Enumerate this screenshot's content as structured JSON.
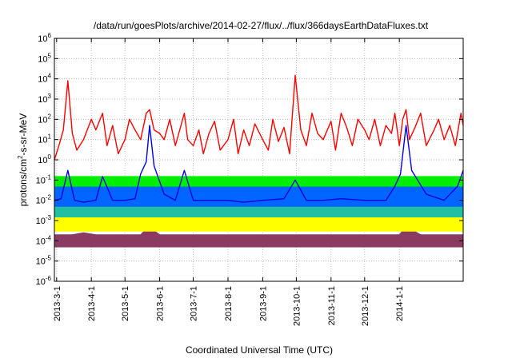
{
  "chart_data": {
    "type": "line",
    "title": "/data/run/goesPlots/archive/2014-02-27/flux/../flux/366daysEarthDataFluxes.txt",
    "xlabel": "Coordinated Universal Time (UTC)",
    "ylabel": {
      "prefix": "protons/cm",
      "sup": "2",
      "suffix": "-s-sr-MeV"
    },
    "yscale": "log",
    "ylim": [
      1e-06,
      1000000.0
    ],
    "xlim": [
      "2013-02-27",
      "2014-02-27"
    ],
    "grid": true,
    "x_tick_labels": [
      "2013-3-1",
      "2013-4-1",
      "2013-5-1",
      "2013-6-1",
      "2013-7-1",
      "2013-8-1",
      "2013-9-1",
      "2013-10-1",
      "2013-11-1",
      "2013-12-1",
      "2014-1-1"
    ],
    "x_tick_dates": [
      "2013-03-01",
      "2013-04-01",
      "2013-05-01",
      "2013-06-01",
      "2013-07-01",
      "2013-08-01",
      "2013-09-01",
      "2013-10-01",
      "2013-11-01",
      "2013-12-01",
      "2014-01-01"
    ],
    "y_ticks": [
      {
        "mant": "10",
        "exp": "-6",
        "value": 1e-06
      },
      {
        "mant": "10",
        "exp": "-5",
        "value": 1e-05
      },
      {
        "mant": "10",
        "exp": "-4",
        "value": 0.0001
      },
      {
        "mant": "10",
        "exp": "-3",
        "value": 0.001
      },
      {
        "mant": "10",
        "exp": "-2",
        "value": 0.01
      },
      {
        "mant": "10",
        "exp": "-1",
        "value": 0.1
      },
      {
        "mant": "10",
        "exp": "0",
        "value": 1
      },
      {
        "mant": "10",
        "exp": "1",
        "value": 10
      },
      {
        "mant": "10",
        "exp": "2",
        "value": 100
      },
      {
        "mant": "10",
        "exp": "3",
        "value": 1000.0
      },
      {
        "mant": "10",
        "exp": "4",
        "value": 10000.0
      },
      {
        "mant": "10",
        "exp": "5",
        "value": 100000.0
      },
      {
        "mant": "10",
        "exp": "6",
        "value": 1000000.0
      }
    ],
    "series": [
      {
        "color": "#8b3a62",
        "dates": [
          "2013-02-27",
          "2013-03-05",
          "2013-03-15",
          "2013-03-25",
          "2013-04-05",
          "2013-04-15",
          "2013-04-25",
          "2013-05-05",
          "2013-05-15",
          "2013-05-22",
          "2013-06-01",
          "2013-06-15",
          "2013-07-01",
          "2013-07-15",
          "2013-08-01",
          "2013-08-15",
          "2013-09-01",
          "2013-09-15",
          "2013-10-01",
          "2013-10-15",
          "2013-11-01",
          "2013-11-15",
          "2013-12-01",
          "2013-12-15",
          "2014-01-01",
          "2014-01-07",
          "2014-01-20",
          "2014-02-05",
          "2014-02-20",
          "2014-02-27"
        ],
        "lower": [
          5e-05,
          5e-05,
          5e-05,
          5e-05,
          5e-05,
          5e-05,
          5e-05,
          5e-05,
          5e-05,
          5e-05,
          5e-05,
          5e-05,
          5e-05,
          5e-05,
          5e-05,
          5e-05,
          5e-05,
          5e-05,
          5e-05,
          5e-05,
          5e-05,
          5e-05,
          5e-05,
          5e-05,
          5e-05,
          5e-05,
          5e-05,
          5e-05,
          5e-05,
          5e-05
        ],
        "upper": [
          0.0002,
          0.0002,
          0.0002,
          0.00025,
          0.0002,
          0.0002,
          0.0002,
          0.0002,
          0.0002,
          0.0005,
          0.0002,
          0.0002,
          0.0002,
          0.0002,
          0.0002,
          0.0002,
          0.0002,
          0.0002,
          0.0002,
          0.0002,
          0.0002,
          0.0002,
          0.0002,
          0.0002,
          0.0002,
          0.0005,
          0.0002,
          0.0002,
          0.0002,
          0.0002
        ]
      },
      {
        "color": "#ffff00",
        "dates": [
          "2013-02-27",
          "2013-03-05",
          "2013-03-15",
          "2013-03-25",
          "2013-04-05",
          "2013-04-15",
          "2013-04-25",
          "2013-05-05",
          "2013-05-15",
          "2013-05-22",
          "2013-06-01",
          "2013-06-15",
          "2013-07-01",
          "2013-07-15",
          "2013-08-01",
          "2013-08-15",
          "2013-09-01",
          "2013-09-15",
          "2013-10-01",
          "2013-10-15",
          "2013-11-01",
          "2013-11-15",
          "2013-12-01",
          "2013-12-15",
          "2014-01-01",
          "2014-01-07",
          "2014-01-20",
          "2014-02-05",
          "2014-02-20",
          "2014-02-27"
        ],
        "lower": [
          0.0003,
          0.0003,
          0.0003,
          0.0003,
          0.0003,
          0.0003,
          0.0003,
          0.0003,
          0.0003,
          0.0003,
          0.0003,
          0.0003,
          0.0003,
          0.0003,
          0.0003,
          0.0003,
          0.0003,
          0.0003,
          0.0003,
          0.0003,
          0.0003,
          0.0003,
          0.0003,
          0.0003,
          0.0003,
          0.0003,
          0.0003,
          0.0003,
          0.0003,
          0.0003
        ],
        "upper": [
          0.0015,
          0.0015,
          0.0015,
          0.0015,
          0.0015,
          0.0015,
          0.0015,
          0.0015,
          0.0015,
          0.004,
          0.0015,
          0.0015,
          0.0015,
          0.0015,
          0.0015,
          0.0015,
          0.0015,
          0.0015,
          0.0015,
          0.0015,
          0.0015,
          0.0015,
          0.0015,
          0.0015,
          0.0015,
          0.003,
          0.0015,
          0.0015,
          0.0015,
          0.0015
        ]
      },
      {
        "color": "#20c0a0",
        "dates": [
          "2013-02-27",
          "2013-03-05",
          "2013-03-15",
          "2013-03-25",
          "2013-04-05",
          "2013-04-15",
          "2013-04-25",
          "2013-05-05",
          "2013-05-15",
          "2013-05-22",
          "2013-06-01",
          "2013-06-15",
          "2013-07-01",
          "2013-07-15",
          "2013-08-01",
          "2013-08-15",
          "2013-09-01",
          "2013-09-15",
          "2013-10-01",
          "2013-10-15",
          "2013-11-01",
          "2013-11-15",
          "2013-12-01",
          "2013-12-15",
          "2014-01-01",
          "2014-01-07",
          "2014-01-20",
          "2014-02-05",
          "2014-02-20",
          "2014-02-27"
        ],
        "lower": [
          0.0015,
          0.0015,
          0.0015,
          0.0015,
          0.0015,
          0.0015,
          0.0015,
          0.0015,
          0.0015,
          0.0015,
          0.0015,
          0.0015,
          0.0015,
          0.0015,
          0.0015,
          0.0015,
          0.0015,
          0.0015,
          0.0015,
          0.0015,
          0.0015,
          0.0015,
          0.0015,
          0.0015,
          0.0015,
          0.0015,
          0.0015,
          0.0015,
          0.0015,
          0.0015
        ],
        "upper": [
          0.005,
          0.005,
          0.005,
          0.005,
          0.005,
          0.005,
          0.005,
          0.005,
          0.005,
          0.01,
          0.005,
          0.005,
          0.005,
          0.005,
          0.005,
          0.005,
          0.005,
          0.005,
          0.005,
          0.005,
          0.005,
          0.005,
          0.005,
          0.005,
          0.005,
          0.008,
          0.005,
          0.005,
          0.005,
          0.005
        ]
      },
      {
        "color": "#0066ff",
        "dates": [
          "2013-02-27",
          "2013-03-05",
          "2013-03-15",
          "2013-03-25",
          "2013-04-05",
          "2013-04-15",
          "2013-04-25",
          "2013-05-05",
          "2013-05-15",
          "2013-05-22",
          "2013-06-01",
          "2013-06-15",
          "2013-07-01",
          "2013-07-15",
          "2013-08-01",
          "2013-08-15",
          "2013-09-01",
          "2013-09-15",
          "2013-10-01",
          "2013-10-15",
          "2013-11-01",
          "2013-11-15",
          "2013-12-01",
          "2013-12-15",
          "2014-01-01",
          "2014-01-07",
          "2014-01-20",
          "2014-02-05",
          "2014-02-20",
          "2014-02-27"
        ],
        "lower": [
          0.005,
          0.005,
          0.005,
          0.005,
          0.005,
          0.005,
          0.005,
          0.005,
          0.005,
          0.005,
          0.005,
          0.005,
          0.005,
          0.005,
          0.005,
          0.005,
          0.005,
          0.005,
          0.005,
          0.005,
          0.005,
          0.005,
          0.005,
          0.005,
          0.005,
          0.005,
          0.005,
          0.005,
          0.005,
          0.005
        ],
        "upper": [
          0.05,
          0.05,
          0.05,
          0.05,
          0.05,
          0.05,
          0.05,
          0.05,
          0.05,
          0.05,
          0.05,
          0.05,
          0.05,
          0.05,
          0.05,
          0.05,
          0.05,
          0.05,
          0.05,
          0.05,
          0.05,
          0.05,
          0.05,
          0.05,
          0.05,
          0.05,
          0.05,
          0.05,
          0.05,
          0.05
        ]
      },
      {
        "color": "#00ee00",
        "dates": [
          "2013-02-27",
          "2013-03-05",
          "2013-03-15",
          "2013-03-25",
          "2013-04-05",
          "2013-04-15",
          "2013-04-25",
          "2013-05-05",
          "2013-05-15",
          "2013-05-22",
          "2013-06-01",
          "2013-06-15",
          "2013-07-01",
          "2013-07-15",
          "2013-08-01",
          "2013-08-15",
          "2013-09-01",
          "2013-09-15",
          "2013-10-01",
          "2013-10-15",
          "2013-11-01",
          "2013-11-15",
          "2013-12-01",
          "2013-12-15",
          "2014-01-01",
          "2014-01-07",
          "2014-01-20",
          "2014-02-05",
          "2014-02-20",
          "2014-02-27"
        ],
        "lower": [
          0.05,
          0.05,
          0.05,
          0.05,
          0.05,
          0.05,
          0.05,
          0.05,
          0.05,
          0.05,
          0.05,
          0.05,
          0.05,
          0.05,
          0.05,
          0.05,
          0.05,
          0.05,
          0.05,
          0.05,
          0.05,
          0.05,
          0.05,
          0.05,
          0.05,
          0.05,
          0.05,
          0.05,
          0.05,
          0.05
        ],
        "upper": [
          0.15,
          0.15,
          0.15,
          0.15,
          0.15,
          0.15,
          0.15,
          0.15,
          0.15,
          0.15,
          0.15,
          0.15,
          0.15,
          0.15,
          0.15,
          0.15,
          0.15,
          0.15,
          0.15,
          0.15,
          0.15,
          0.15,
          0.15,
          0.15,
          0.15,
          0.15,
          0.15,
          0.15,
          0.15,
          0.15
        ]
      },
      {
        "color": "#0000ee",
        "dates": [
          "2013-02-27",
          "2013-03-05",
          "2013-03-11",
          "2013-03-17",
          "2013-03-25",
          "2013-04-05",
          "2013-04-11",
          "2013-04-20",
          "2013-05-01",
          "2013-05-10",
          "2013-05-15",
          "2013-05-20",
          "2013-05-23",
          "2013-05-27",
          "2013-06-05",
          "2013-06-15",
          "2013-06-23",
          "2013-07-01",
          "2013-07-15",
          "2013-08-01",
          "2013-08-15",
          "2013-09-01",
          "2013-09-20",
          "2013-09-30",
          "2013-10-10",
          "2013-10-25",
          "2013-11-10",
          "2013-12-01",
          "2013-12-20",
          "2013-12-28",
          "2014-01-02",
          "2014-01-07",
          "2014-01-12",
          "2014-01-25",
          "2014-02-10",
          "2014-02-22",
          "2014-02-27"
        ],
        "values": [
          0.01,
          0.012,
          0.3,
          0.01,
          0.008,
          0.01,
          0.15,
          0.01,
          0.01,
          0.012,
          0.2,
          0.8,
          50,
          0.5,
          0.02,
          0.01,
          0.3,
          0.01,
          0.01,
          0.01,
          0.008,
          0.01,
          0.012,
          0.1,
          0.01,
          0.01,
          0.012,
          0.01,
          0.01,
          0.05,
          0.2,
          50,
          0.3,
          0.02,
          0.01,
          0.05,
          0.3
        ]
      },
      {
        "color": "#ff0000",
        "dates": [
          "2013-02-27",
          "2013-03-03",
          "2013-03-07",
          "2013-03-11",
          "2013-03-15",
          "2013-03-19",
          "2013-03-25",
          "2013-04-01",
          "2013-04-05",
          "2013-04-11",
          "2013-04-15",
          "2013-04-20",
          "2013-04-25",
          "2013-05-01",
          "2013-05-05",
          "2013-05-10",
          "2013-05-15",
          "2013-05-20",
          "2013-05-23",
          "2013-05-27",
          "2013-06-01",
          "2013-06-05",
          "2013-06-10",
          "2013-06-15",
          "2013-06-20",
          "2013-06-23",
          "2013-06-26",
          "2013-07-01",
          "2013-07-06",
          "2013-07-10",
          "2013-07-15",
          "2013-07-20",
          "2013-07-25",
          "2013-08-01",
          "2013-08-06",
          "2013-08-10",
          "2013-08-15",
          "2013-08-20",
          "2013-08-25",
          "2013-09-01",
          "2013-09-06",
          "2013-09-10",
          "2013-09-15",
          "2013-09-20",
          "2013-09-25",
          "2013-09-30",
          "2013-10-05",
          "2013-10-10",
          "2013-10-15",
          "2013-10-20",
          "2013-10-25",
          "2013-11-01",
          "2013-11-05",
          "2013-11-10",
          "2013-11-15",
          "2013-11-20",
          "2013-11-25",
          "2013-12-01",
          "2013-12-05",
          "2013-12-10",
          "2013-12-15",
          "2013-12-20",
          "2013-12-25",
          "2013-12-28",
          "2014-01-01",
          "2014-01-04",
          "2014-01-07",
          "2014-01-10",
          "2014-01-15",
          "2014-01-20",
          "2014-01-25",
          "2014-02-01",
          "2014-02-05",
          "2014-02-10",
          "2014-02-15",
          "2014-02-20",
          "2014-02-25",
          "2014-02-27"
        ],
        "values": [
          1,
          5,
          30,
          8000,
          20,
          3,
          10,
          100,
          30,
          200,
          5,
          50,
          2,
          10,
          100,
          30,
          10,
          200,
          300,
          30,
          20,
          10,
          100,
          5,
          50,
          200,
          10,
          5,
          30,
          2,
          20,
          80,
          3,
          10,
          100,
          2,
          30,
          5,
          60,
          10,
          3,
          100,
          8,
          40,
          2,
          15000,
          30,
          5,
          200,
          20,
          10,
          80,
          3,
          200,
          40,
          5,
          100,
          30,
          10,
          100,
          5,
          50,
          20,
          200,
          5,
          100,
          300,
          10,
          40,
          200,
          5,
          30,
          100,
          10,
          50,
          5,
          200,
          50
        ]
      }
    ]
  }
}
